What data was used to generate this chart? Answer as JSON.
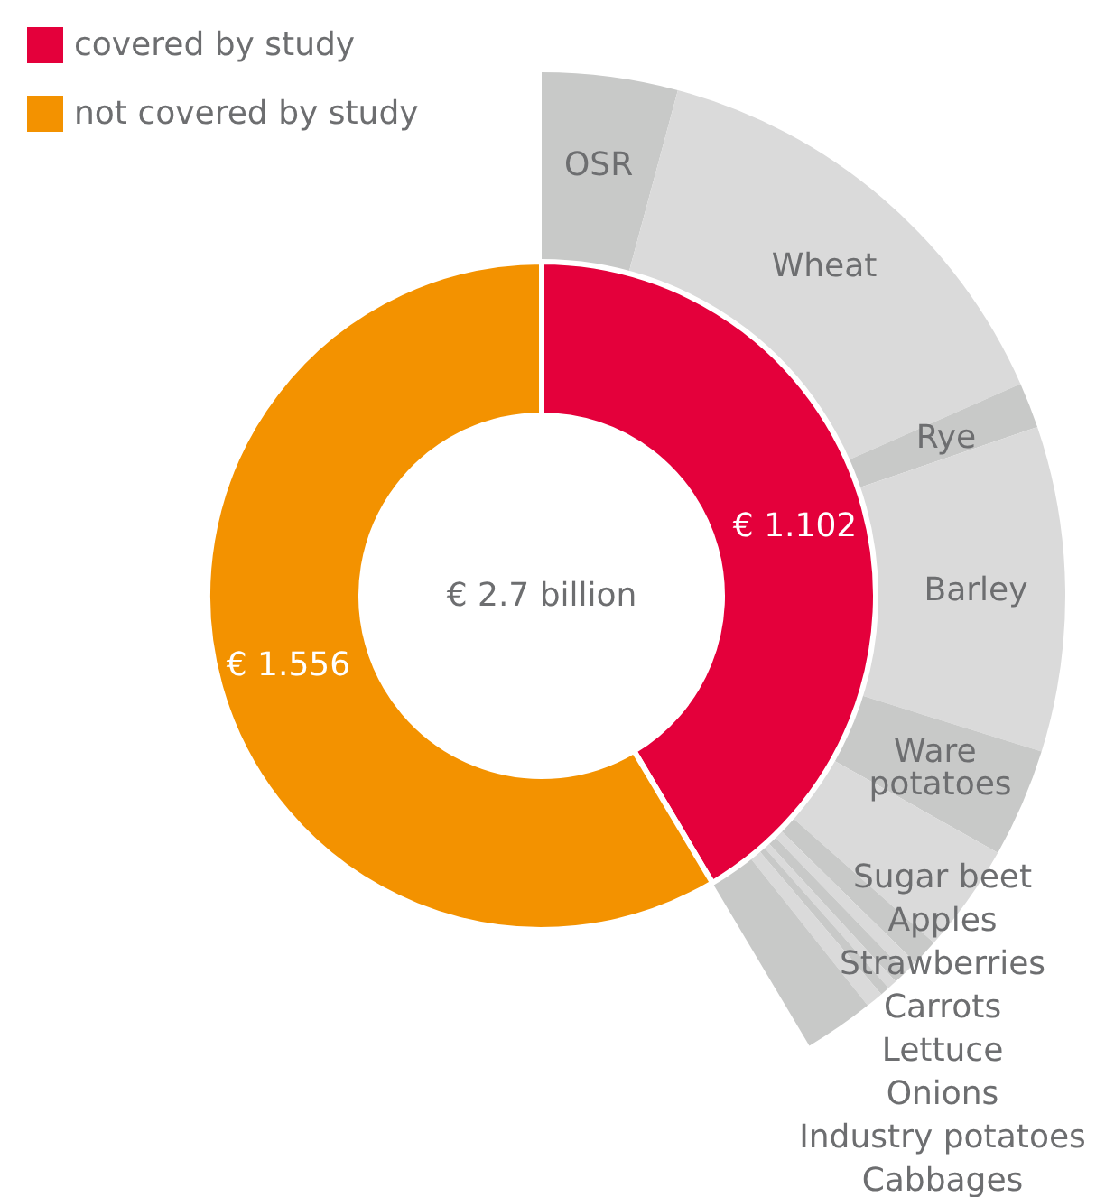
{
  "chart_data": [
    {
      "type": "donut",
      "categories": [
        "covered by study",
        "not covered by study"
      ],
      "values": [
        1.102,
        1.556
      ],
      "colors": [
        "#e4003b",
        "#f39200"
      ],
      "value_labels": [
        "€ 1.102",
        "€ 1.556"
      ],
      "annotations": [
        "€ 2.7 billion"
      ],
      "legend": "top left"
    },
    {
      "type": "donut",
      "categories": [
        "OSR",
        "Wheat",
        "Rye",
        "Barley",
        "Ware potatoes",
        "Sugar beet",
        "Apples",
        "Strawberries",
        "Carrots",
        "Lettuce",
        "Onions",
        "Industry potatoes",
        "Cabbages"
      ],
      "values": [
        10.1,
        34.2,
        3.4,
        24.2,
        8.1,
        8.1,
        2.0,
        1.0,
        1.0,
        0.7,
        0.7,
        1.3,
        5.2
      ],
      "colors": [
        "#c8c9c8",
        "#dadada",
        "#c8c9c8",
        "#dadada",
        "#c8c9c8",
        "#dadada",
        "#c8c9c8",
        "#dadada",
        "#c8c9c8",
        "#dadada",
        "#c8c9c8",
        "#dadada",
        "#c8c9c8"
      ]
    }
  ]
}
